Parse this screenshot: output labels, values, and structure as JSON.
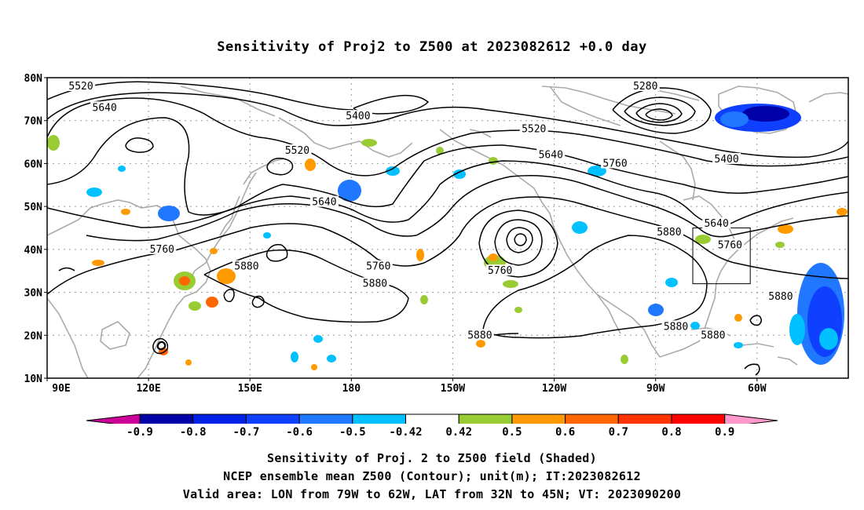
{
  "title": "Sensitivity of Proj2 to Z500 at 2023082612 +0.0 day",
  "lat_labels": [
    "80N",
    "70N",
    "60N",
    "50N",
    "40N",
    "30N",
    "20N",
    "10N"
  ],
  "lon_labels": [
    "90E",
    "120E",
    "150E",
    "180",
    "150W",
    "120W",
    "90W",
    "60W"
  ],
  "contour_labels": [
    {
      "text": "5520",
      "lon": 100,
      "lat": 78
    },
    {
      "text": "5640",
      "lon": 107,
      "lat": 73
    },
    {
      "text": "5400",
      "lon": 182,
      "lat": 71
    },
    {
      "text": "5520",
      "lon": 164,
      "lat": 63
    },
    {
      "text": "5520",
      "lon": 234,
      "lat": 68
    },
    {
      "text": "5640",
      "lon": 172,
      "lat": 51
    },
    {
      "text": "5640",
      "lon": 239,
      "lat": 62
    },
    {
      "text": "5760",
      "lon": 258,
      "lat": 60
    },
    {
      "text": "5280",
      "lon": 267,
      "lat": 78
    },
    {
      "text": "5400",
      "lon": 291,
      "lat": 61
    },
    {
      "text": "5640",
      "lon": 288,
      "lat": 46
    },
    {
      "text": "5760",
      "lon": 292,
      "lat": 41
    },
    {
      "text": "5880",
      "lon": 274,
      "lat": 44
    },
    {
      "text": "5760",
      "lon": 124,
      "lat": 40
    },
    {
      "text": "5880",
      "lon": 149,
      "lat": 36
    },
    {
      "text": "5760",
      "lon": 188,
      "lat": 36
    },
    {
      "text": "5880",
      "lon": 187,
      "lat": 32
    },
    {
      "text": "5760",
      "lon": 224,
      "lat": 35
    },
    {
      "text": "5880",
      "lon": 218,
      "lat": 20
    },
    {
      "text": "5880",
      "lon": 276,
      "lat": 22
    },
    {
      "text": "5880",
      "lon": 287,
      "lat": 20
    },
    {
      "text": "5880",
      "lon": 307,
      "lat": 29
    }
  ],
  "valid_box": {
    "lon_min": 281,
    "lon_max": 298,
    "lat_min": 32,
    "lat_max": 45
  },
  "colorbar": {
    "labels": [
      "-0.9",
      "-0.8",
      "-0.7",
      "-0.6",
      "-0.5",
      "-0.42",
      "0.42",
      "0.5",
      "0.6",
      "0.7",
      "0.8",
      "0.9"
    ],
    "colors": [
      "#0000a8",
      "#0022e6",
      "#1040ff",
      "#1f78ff",
      "#00c0ff",
      "#ffffff",
      "#99cc33",
      "#ff9900",
      "#ff6600",
      "#ff3300",
      "#ff0000"
    ],
    "low_color": "#cc0099",
    "high_color": "#ff99cc"
  },
  "captions": [
    "Sensitivity of Proj. 2 to Z500 field (Shaded)",
    "NCEP ensemble mean Z500 (Contour); unit(m); IT:2023082612",
    "Valid area: LON from 79W to 62W, LAT from 32N to 45N; VT: 2023090200"
  ]
}
